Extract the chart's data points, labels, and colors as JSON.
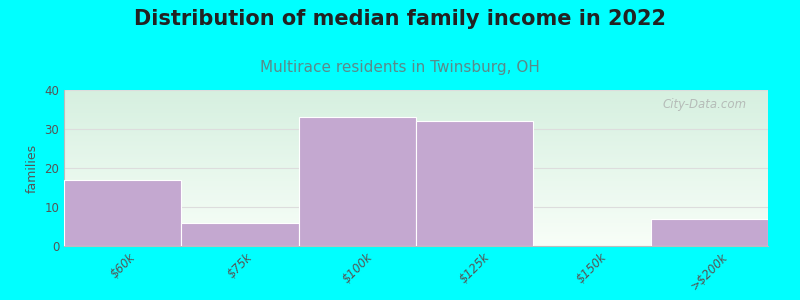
{
  "title": "Distribution of median family income in 2022",
  "subtitle": "Multirace residents in Twinsburg, OH",
  "categories": [
    "$60k",
    "$75k",
    "$100k",
    "$125k",
    "$150k",
    ">$200k"
  ],
  "values": [
    17,
    6,
    33,
    32,
    0,
    7
  ],
  "bar_color": "#c4a8d0",
  "background_color": "#00ffff",
  "plot_bg_top": "#d6f0e0",
  "plot_bg_bottom": "#f8fef8",
  "ylabel": "families",
  "ylim": [
    0,
    40
  ],
  "yticks": [
    0,
    10,
    20,
    30,
    40
  ],
  "title_fontsize": 15,
  "subtitle_fontsize": 11,
  "title_color": "#222222",
  "subtitle_color": "#5a8a8a",
  "watermark": "City-Data.com",
  "grid_color": "#dddddd"
}
